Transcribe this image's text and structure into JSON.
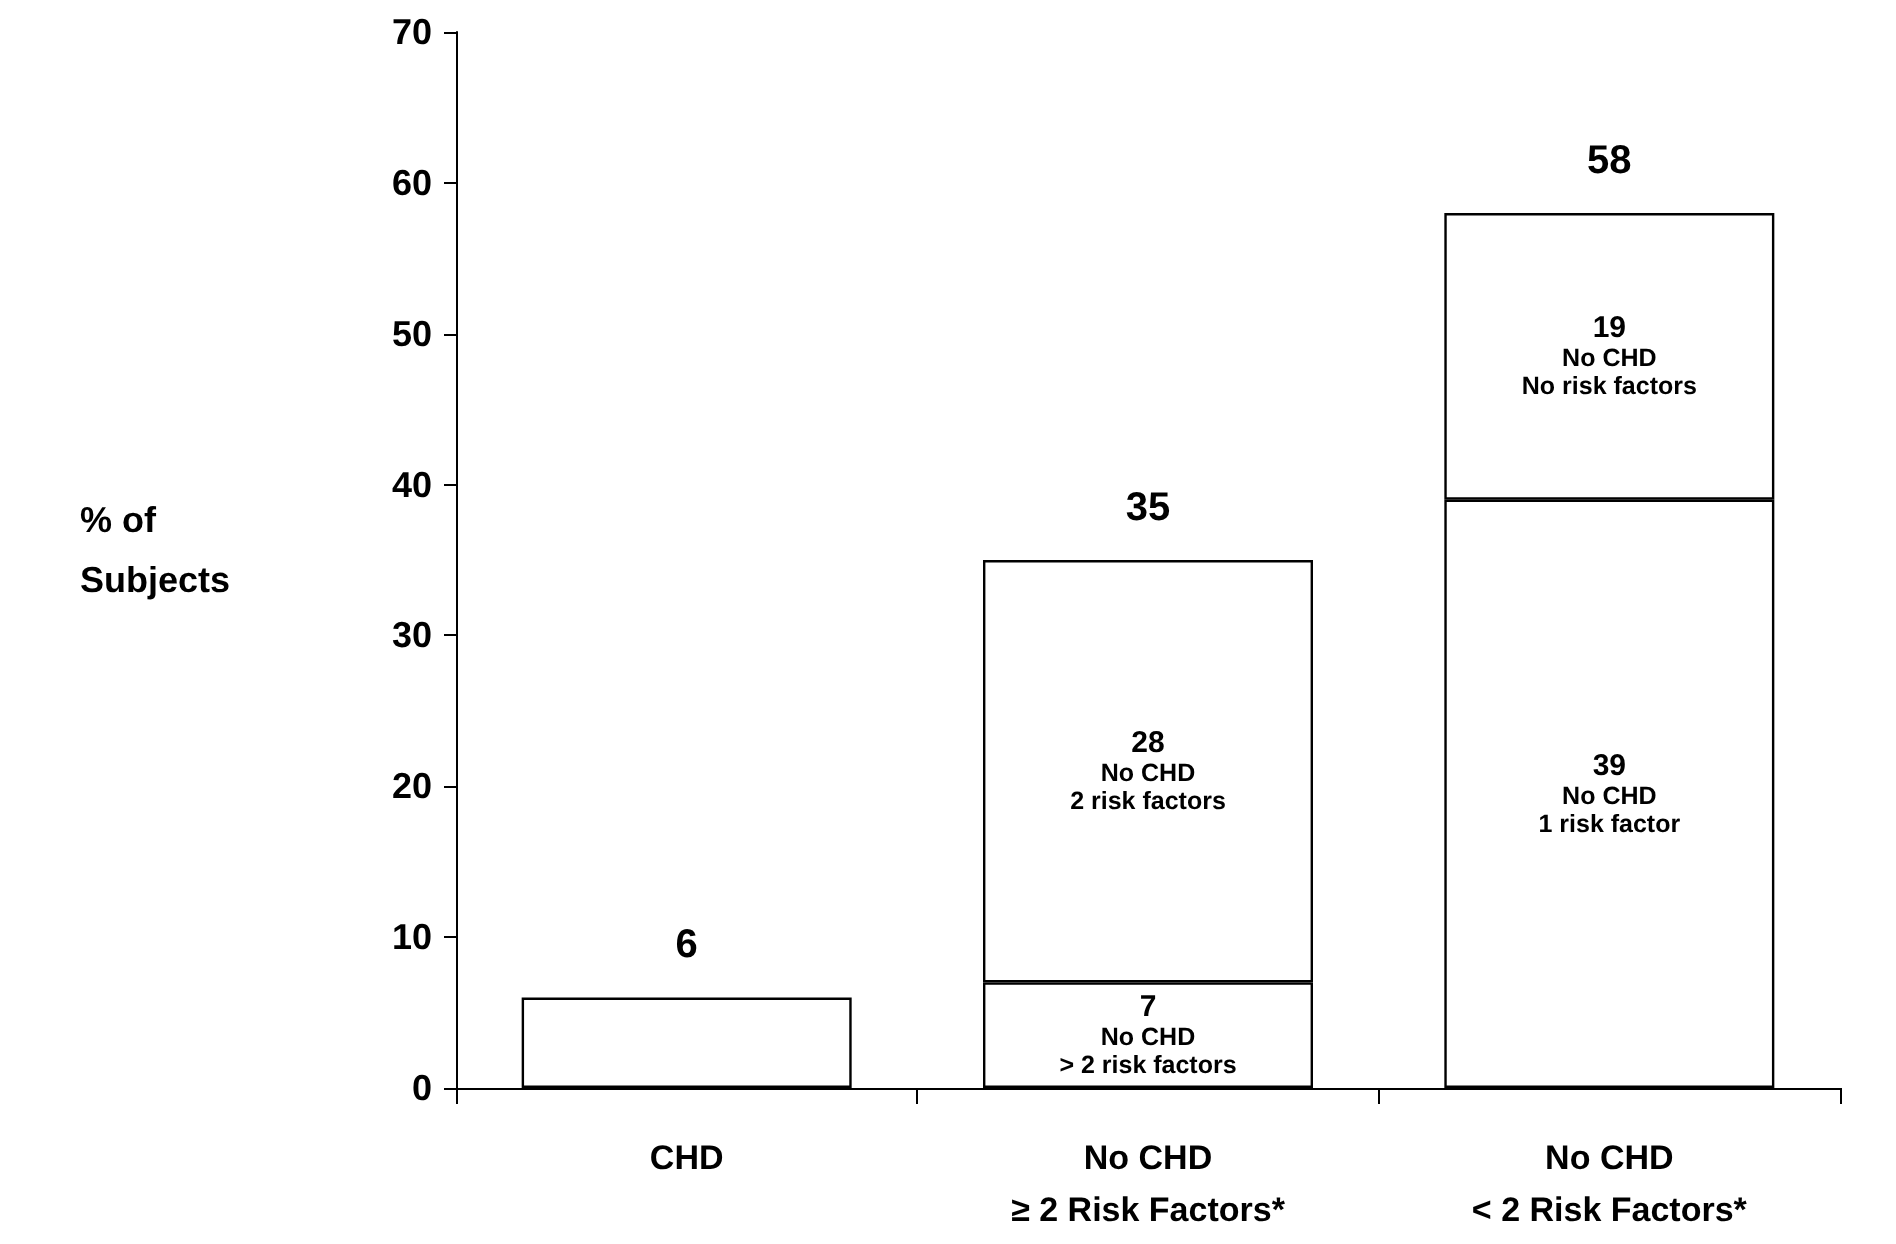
{
  "chart_data": {
    "type": "bar",
    "stacked": true,
    "ylabel": "% of\nSubjects",
    "categories": [
      "CHD",
      "No CHD\n≥ 2 Risk Factors*",
      "No CHD\n< 2 Risk Factors*"
    ],
    "series": [
      {
        "color": "#ffffff",
        "values": [
          6,
          7,
          39
        ],
        "value_labels": [
          null,
          "7\nNo CHD\n> 2 risk factors",
          "39\nNo CHD\n1 risk factor"
        ]
      },
      {
        "color": "#ffffff",
        "values": [
          null,
          28,
          19
        ],
        "value_labels": [
          null,
          "28\nNo CHD\n2 risk factors",
          "19\nNo CHD\nNo risk factors"
        ]
      }
    ],
    "totals": [
      "6",
      "35",
      "58"
    ],
    "ylim": [
      0,
      70
    ],
    "yticks": [
      0,
      10,
      20,
      30,
      40,
      50,
      60,
      70
    ],
    "grid": false
  }
}
